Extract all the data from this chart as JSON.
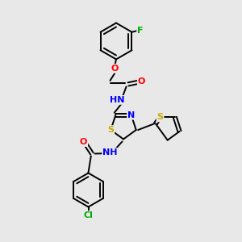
{
  "bg_color": "#e8e8e8",
  "bond_color": "#000000",
  "atom_colors": {
    "N": "#0000ff",
    "O": "#ff0000",
    "S": "#ccaa00",
    "F": "#00aa00",
    "Cl": "#00aa00",
    "H": "#888888",
    "C": "#000000"
  },
  "font_size": 8,
  "figsize": [
    3.0,
    3.0
  ],
  "dpi": 100
}
